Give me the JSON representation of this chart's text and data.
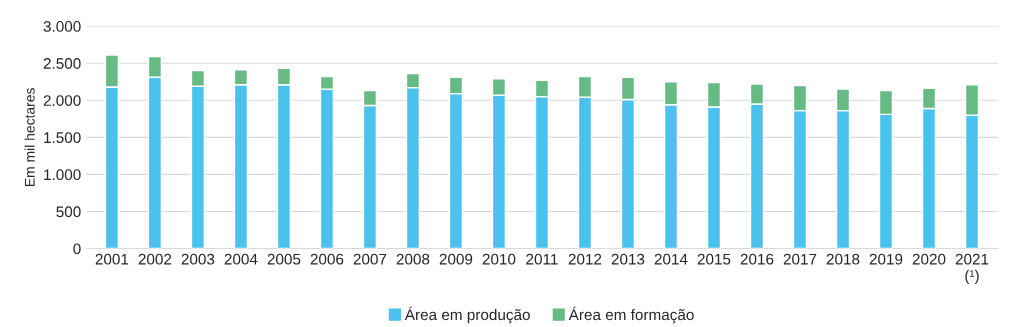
{
  "chart_data": {
    "type": "bar",
    "stacked": true,
    "ylabel": "Em mil hectares",
    "categories": [
      "2001",
      "2002",
      "2003",
      "2004",
      "2005",
      "2006",
      "2007",
      "2008",
      "2009",
      "2010",
      "2011",
      "2012",
      "2013",
      "2014",
      "2015",
      "2016",
      "2017",
      "2018",
      "2019",
      "2020",
      "2021\n(¹)"
    ],
    "series": [
      {
        "name": "Área em produção",
        "color": "#4bc1ee",
        "values": [
          2180,
          2310,
          2190,
          2210,
          2210,
          2150,
          1930,
          2170,
          2090,
          2070,
          2050,
          2040,
          2010,
          1940,
          1910,
          1950,
          1860,
          1860,
          1810,
          1890,
          1800
        ]
      },
      {
        "name": "Área em formação",
        "color": "#66bb85",
        "values": [
          430,
          280,
          210,
          200,
          220,
          170,
          200,
          190,
          220,
          220,
          220,
          280,
          300,
          310,
          330,
          270,
          340,
          290,
          320,
          270,
          410
        ]
      }
    ],
    "ylim": [
      0,
      3000
    ],
    "yticks": [
      {
        "value": 0,
        "label": "0"
      },
      {
        "value": 500,
        "label": "500"
      },
      {
        "value": 1000,
        "label": "1.000"
      },
      {
        "value": 1500,
        "label": "1.500"
      },
      {
        "value": 2000,
        "label": "2.000"
      },
      {
        "value": 2500,
        "label": "2.500"
      },
      {
        "value": 3000,
        "label": "3.000"
      }
    ],
    "grid": "y",
    "legend": "bottom"
  }
}
